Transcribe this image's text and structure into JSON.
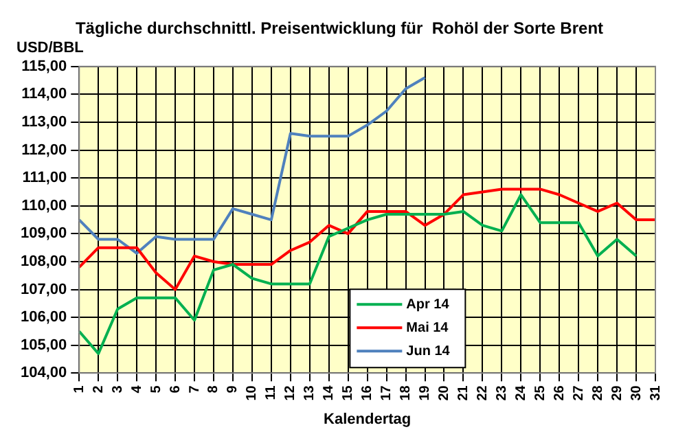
{
  "chart_data": {
    "type": "line",
    "title": "Tägliche durchschnittl. Preisentwicklung für  Rohöl der Sorte Brent",
    "xlabel": "Kalendertag",
    "ylabel": "USD/BBL",
    "categories": [
      "1",
      "2",
      "3",
      "4",
      "5",
      "6",
      "7",
      "8",
      "9",
      "10",
      "11",
      "12",
      "13",
      "14",
      "15",
      "16",
      "17",
      "18",
      "19",
      "20",
      "21",
      "22",
      "23",
      "24",
      "25",
      "26",
      "27",
      "28",
      "29",
      "30",
      "31"
    ],
    "series": [
      {
        "name": "Apr 14",
        "color": "#00b050",
        "values": [
          105.5,
          104.7,
          106.3,
          106.7,
          106.7,
          106.7,
          105.9,
          107.7,
          107.9,
          107.4,
          107.2,
          107.2,
          107.2,
          108.9,
          109.2,
          109.5,
          109.7,
          109.7,
          109.7,
          109.7,
          109.8,
          109.3,
          109.1,
          110.4,
          109.4,
          109.4,
          109.4,
          108.2,
          108.8,
          108.2,
          null
        ]
      },
      {
        "name": "Mai 14",
        "color": "#ff0000",
        "values": [
          107.8,
          108.5,
          108.5,
          108.5,
          107.6,
          107.0,
          108.2,
          108.0,
          107.9,
          107.9,
          107.9,
          108.4,
          108.7,
          109.3,
          109.0,
          109.8,
          109.8,
          109.8,
          109.3,
          109.7,
          110.4,
          110.5,
          110.6,
          110.6,
          110.6,
          110.4,
          110.1,
          109.8,
          110.1,
          109.5,
          109.5
        ]
      },
      {
        "name": "Jun 14",
        "color": "#4f81bd",
        "values": [
          109.5,
          108.8,
          108.8,
          108.3,
          108.9,
          108.8,
          108.8,
          108.8,
          109.9,
          109.7,
          109.5,
          112.6,
          112.5,
          112.5,
          112.5,
          112.9,
          113.4,
          114.2,
          114.6,
          null,
          null,
          null,
          null,
          null,
          null,
          null,
          null,
          null,
          null,
          null,
          null
        ]
      }
    ],
    "ylim": [
      104,
      115
    ],
    "yticks": [
      {
        "value": 104,
        "label": "104,00"
      },
      {
        "value": 105,
        "label": "105,00"
      },
      {
        "value": 106,
        "label": "106,00"
      },
      {
        "value": 107,
        "label": "107,00"
      },
      {
        "value": 108,
        "label": "108,00"
      },
      {
        "value": 109,
        "label": "109,00"
      },
      {
        "value": 110,
        "label": "110,00"
      },
      {
        "value": 111,
        "label": "111,00"
      },
      {
        "value": 112,
        "label": "112,00"
      },
      {
        "value": 113,
        "label": "113,00"
      },
      {
        "value": 114,
        "label": "114,00"
      },
      {
        "value": 115,
        "label": "115,00"
      }
    ],
    "grid": true,
    "legend": "bottom",
    "marker": "none",
    "line_style": "solid"
  }
}
